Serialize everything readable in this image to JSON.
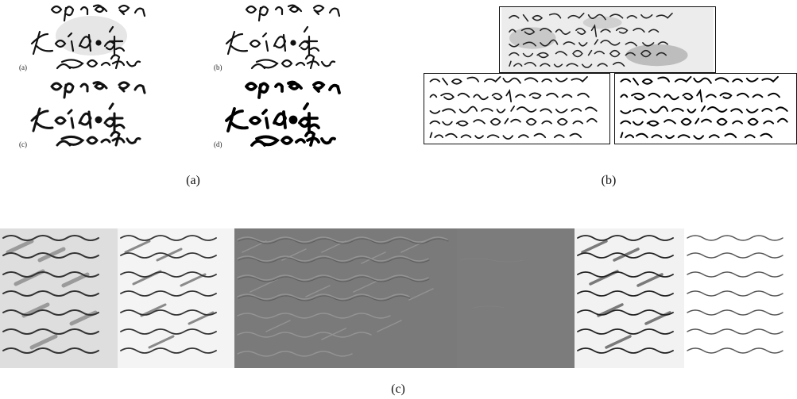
{
  "panel_a": {
    "sub_labels": [
      "(a)",
      "(b)",
      "(c)",
      "(d)"
    ]
  },
  "captions": {
    "a": "(a)",
    "b": "(b)",
    "c": "(c)"
  },
  "colors": {
    "ink": "#111111",
    "parchment_stain": "#bdbdbd",
    "emboss_gray": "#7a7a7a",
    "flat_gray": "#7c7c7c",
    "degraded_paper": "#d9d9d9"
  }
}
